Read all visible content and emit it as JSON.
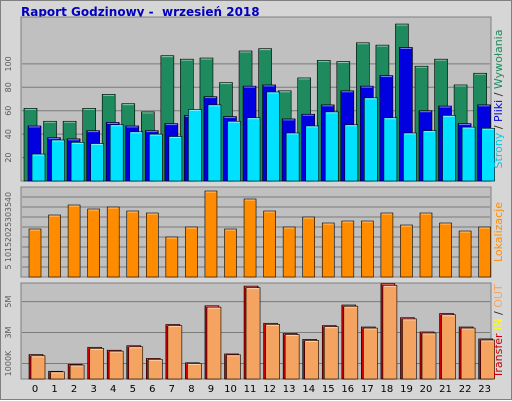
{
  "title": "Raport Godzinowy -  wrzesień 2018",
  "chart_data": [
    {
      "type": "bar",
      "name": "visits",
      "x": [
        "0",
        "1",
        "2",
        "3",
        "4",
        "5",
        "6",
        "7",
        "8",
        "9",
        "10",
        "11",
        "12",
        "13",
        "14",
        "15",
        "16",
        "17",
        "18",
        "19",
        "20",
        "21",
        "22",
        "23"
      ],
      "ylim": [
        0,
        140
      ],
      "yticks": [
        20,
        40,
        60,
        80,
        100
      ],
      "side_label": [
        {
          "text": "Strony",
          "color": "#00c8e8"
        },
        {
          "text": " / ",
          "color": "#2a2a2a"
        },
        {
          "text": "Pliki",
          "color": "#0000e0"
        },
        {
          "text": " / ",
          "color": "#2a2a2a"
        },
        {
          "text": "Wywołania",
          "color": "#1e8a5e"
        }
      ],
      "series": [
        {
          "name": "Wywołania",
          "color": "#1e8a5e",
          "values": [
            62,
            51,
            51,
            62,
            74,
            66,
            59,
            107,
            104,
            105,
            84,
            111,
            113,
            77,
            88,
            103,
            102,
            118,
            116,
            134,
            98,
            104,
            82,
            92
          ]
        },
        {
          "name": "Pliki",
          "color": "#0000e0",
          "values": [
            47,
            37,
            36,
            43,
            50,
            47,
            43,
            49,
            56,
            72,
            55,
            81,
            82,
            53,
            57,
            65,
            77,
            81,
            90,
            114,
            60,
            64,
            49,
            65
          ]
        },
        {
          "name": "Strony",
          "color": "#00e0ff",
          "values": [
            23,
            35,
            33,
            32,
            48,
            42,
            40,
            38,
            61,
            65,
            51,
            54,
            76,
            41,
            47,
            59,
            48,
            71,
            54,
            41,
            43,
            56,
            46,
            45
          ]
        }
      ]
    },
    {
      "type": "bar",
      "name": "locations",
      "x": [
        "0",
        "1",
        "2",
        "3",
        "4",
        "5",
        "6",
        "7",
        "8",
        "9",
        "10",
        "11",
        "12",
        "13",
        "14",
        "15",
        "16",
        "17",
        "18",
        "19",
        "20",
        "21",
        "22",
        "23"
      ],
      "ylim": [
        0,
        45
      ],
      "yticks": [
        5,
        10,
        15,
        20,
        25,
        30,
        35,
        40
      ],
      "side_label": [
        {
          "text": "Lokalizacje",
          "color": "#ff8c00"
        }
      ],
      "series": [
        {
          "name": "Lokalizacje",
          "color": "#ff8c00",
          "values": [
            24,
            31,
            36,
            34,
            35,
            33,
            32,
            20,
            25,
            43,
            24,
            39,
            33,
            25,
            30,
            27,
            28,
            28,
            32,
            26,
            32,
            27,
            23,
            25
          ]
        }
      ]
    },
    {
      "type": "bar",
      "name": "transfer",
      "x": [
        "0",
        "1",
        "2",
        "3",
        "4",
        "5",
        "6",
        "7",
        "8",
        "9",
        "10",
        "11",
        "12",
        "13",
        "14",
        "15",
        "16",
        "17",
        "18",
        "19",
        "20",
        "21",
        "22",
        "23"
      ],
      "ylim": [
        0,
        6200
      ],
      "ytick_labels": [
        {
          "value": 1000,
          "label": "1000K"
        },
        {
          "value": 3000,
          "label": "3M"
        },
        {
          "value": 5000,
          "label": "5M"
        }
      ],
      "side_label": [
        {
          "text": "Transfer",
          "color": "#cc0000"
        },
        {
          "text": " ",
          "color": "#2a2a2a"
        },
        {
          "text": "IN",
          "color": "#ffff00"
        },
        {
          "text": " / ",
          "color": "#2a2a2a"
        },
        {
          "text": "OUT",
          "color": "#f4a460"
        }
      ],
      "series": [
        {
          "name": "Transfer",
          "color": "#cc0000",
          "values": [
            1580,
            500,
            950,
            2050,
            1860,
            2150,
            1330,
            3520,
            1050,
            4730,
            1620,
            6000,
            3600,
            2940,
            2560,
            3450,
            4780,
            3360,
            6150,
            3960,
            3040,
            4230,
            3360,
            2590
          ]
        },
        {
          "name": "OUT",
          "color": "#f4a460",
          "values": [
            1500,
            460,
            900,
            1980,
            1800,
            2080,
            1270,
            3450,
            1000,
            4640,
            1560,
            5900,
            3530,
            2870,
            2490,
            3380,
            4700,
            3290,
            6050,
            3880,
            2970,
            4150,
            3290,
            2520
          ]
        }
      ]
    }
  ]
}
